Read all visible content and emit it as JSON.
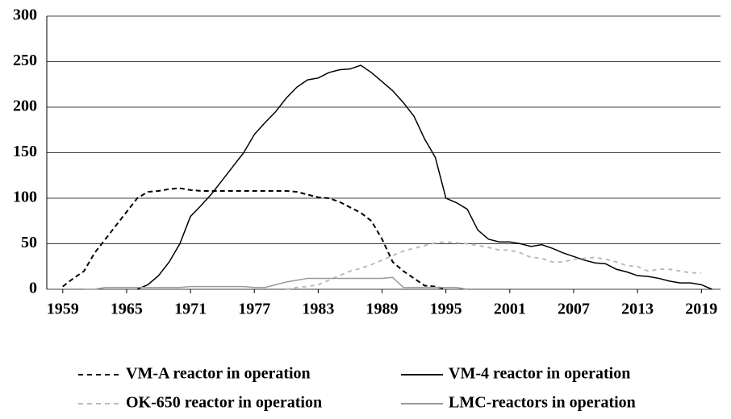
{
  "chart_data": {
    "type": "line",
    "x": [
      1959,
      1960,
      1961,
      1962,
      1963,
      1964,
      1965,
      1966,
      1967,
      1968,
      1969,
      1970,
      1971,
      1972,
      1973,
      1974,
      1975,
      1976,
      1977,
      1978,
      1979,
      1980,
      1981,
      1982,
      1983,
      1984,
      1985,
      1986,
      1987,
      1988,
      1989,
      1990,
      1991,
      1992,
      1993,
      1994,
      1995,
      1996,
      1997,
      1998,
      1999,
      2000,
      2001,
      2002,
      2003,
      2004,
      2005,
      2006,
      2007,
      2008,
      2009,
      2010,
      2011,
      2012,
      2013,
      2014,
      2015,
      2016,
      2017,
      2018,
      2019,
      2020
    ],
    "series": [
      {
        "name": "VM-A reactor in operation",
        "color": "#000000",
        "line_style": "dashed",
        "values": [
          3,
          12,
          20,
          40,
          55,
          70,
          85,
          100,
          107,
          108,
          110,
          111,
          109,
          108,
          108,
          108,
          108,
          108,
          108,
          108,
          108,
          108,
          107,
          104,
          101,
          100,
          96,
          90,
          84,
          75,
          55,
          30,
          20,
          12,
          4,
          3,
          0,
          null,
          null,
          null,
          null,
          null,
          null,
          null,
          null,
          null,
          null,
          null,
          null,
          null,
          null,
          null,
          null,
          null,
          null,
          null,
          null,
          null,
          null,
          null,
          null,
          null
        ]
      },
      {
        "name": "VM-4 reactor in operation",
        "color": "#000000",
        "line_style": "solid",
        "values": [
          null,
          null,
          null,
          null,
          null,
          null,
          null,
          0,
          5,
          15,
          30,
          50,
          80,
          92,
          105,
          120,
          135,
          150,
          170,
          183,
          195,
          210,
          222,
          230,
          232,
          238,
          241,
          242,
          246,
          238,
          228,
          218,
          205,
          190,
          165,
          145,
          100,
          95,
          88,
          65,
          55,
          52,
          52,
          50,
          47,
          49,
          45,
          40,
          36,
          32,
          29,
          28,
          22,
          19,
          15,
          14,
          12,
          9,
          7,
          7,
          5,
          0
        ]
      },
      {
        "name": "OK-650 reactor in operation",
        "color": "#bbbbbb",
        "line_style": "dashed",
        "values": [
          null,
          null,
          null,
          null,
          null,
          null,
          null,
          null,
          null,
          null,
          null,
          null,
          null,
          null,
          null,
          null,
          null,
          null,
          null,
          null,
          null,
          0,
          2,
          3,
          5,
          10,
          15,
          20,
          23,
          27,
          32,
          37,
          42,
          45,
          48,
          51,
          52,
          51,
          50,
          48,
          46,
          43,
          43,
          40,
          35,
          34,
          30,
          30,
          33,
          34,
          35,
          33,
          30,
          26,
          25,
          20,
          22,
          22,
          20,
          18,
          18,
          null
        ]
      },
      {
        "name": "LMC-reactors in operation",
        "color": "#999999",
        "line_style": "solid",
        "values": [
          null,
          null,
          0,
          0,
          2,
          2,
          2,
          2,
          2,
          2,
          2,
          2,
          3,
          3,
          3,
          3,
          3,
          3,
          2,
          2,
          5,
          8,
          10,
          12,
          12,
          12,
          12,
          12,
          12,
          12,
          12,
          13,
          2,
          2,
          2,
          2,
          2,
          2,
          0,
          null,
          null,
          null,
          null,
          null,
          null,
          null,
          null,
          null,
          null,
          null,
          null,
          null,
          null,
          null,
          null,
          null,
          null,
          null,
          null,
          null,
          null,
          null
        ]
      }
    ],
    "xlim": [
      1957.5,
      2020.8
    ],
    "xticks": [
      1959,
      1965,
      1971,
      1977,
      1983,
      1989,
      1995,
      2001,
      2007,
      2013,
      2019
    ],
    "ylim": [
      0,
      300
    ],
    "yticks": [
      0,
      50,
      100,
      150,
      200,
      250,
      300
    ],
    "grid": true,
    "legend": "bottom"
  }
}
